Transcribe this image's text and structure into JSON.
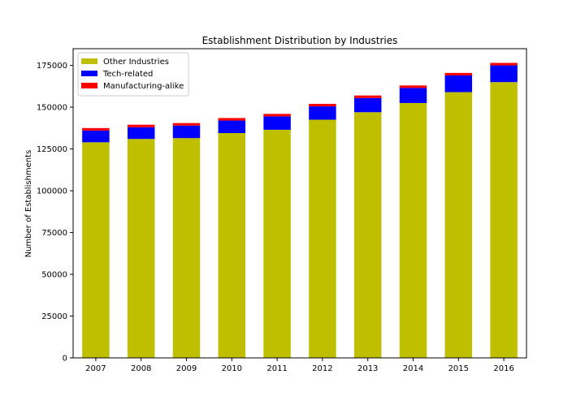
{
  "chart_data": {
    "type": "bar",
    "stacked": true,
    "title": "Establishment Distribution by Industries",
    "xlabel": "",
    "ylabel": "Number of Establishments",
    "categories": [
      "2007",
      "2008",
      "2009",
      "2010",
      "2011",
      "2012",
      "2013",
      "2014",
      "2015",
      "2016"
    ],
    "ylim": [
      0,
      185000
    ],
    "yticks": [
      0,
      25000,
      50000,
      75000,
      100000,
      125000,
      150000,
      175000
    ],
    "ytick_labels": [
      "0",
      "25000",
      "50000",
      "75000",
      "100000",
      "125000",
      "150000",
      "175000"
    ],
    "grid": false,
    "legend_position": "top-left",
    "series": [
      {
        "name": "Other Industries",
        "color": "#bfbf00",
        "values": [
          129000,
          131000,
          131500,
          134500,
          136500,
          142500,
          147000,
          152500,
          159000,
          165000
        ]
      },
      {
        "name": "Tech-related",
        "color": "#0000ff",
        "values": [
          7000,
          7000,
          7500,
          7500,
          8000,
          8000,
          8500,
          9000,
          10000,
          10000
        ]
      },
      {
        "name": "Manufacturing-alike",
        "color": "#ff0000",
        "values": [
          1500,
          1500,
          1500,
          1500,
          1500,
          1500,
          1500,
          1500,
          1500,
          1500
        ]
      }
    ]
  }
}
